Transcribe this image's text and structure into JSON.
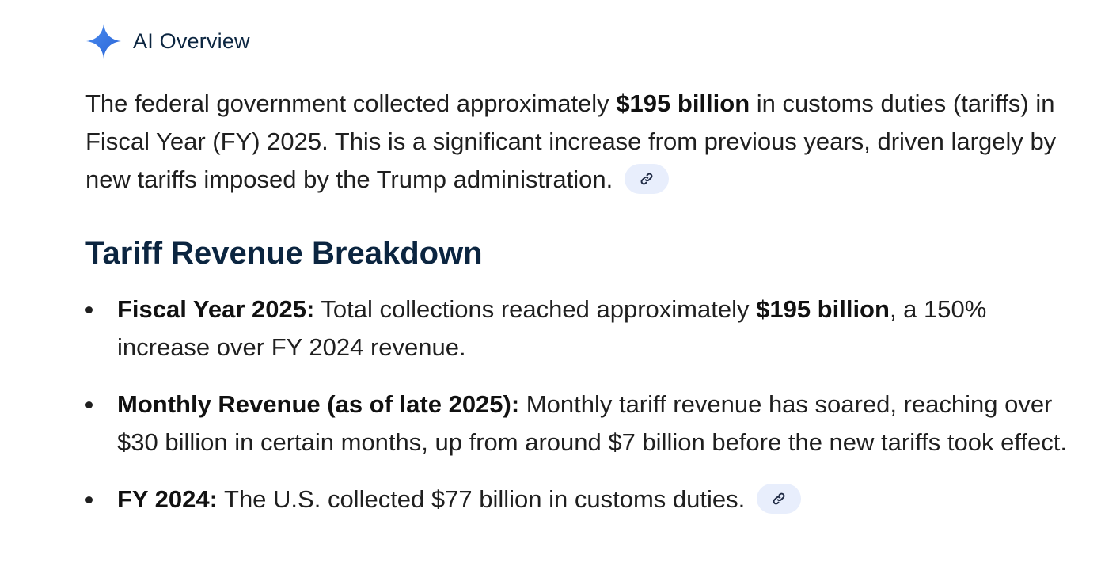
{
  "header": {
    "icon": "sparkle-icon",
    "title": "AI Overview",
    "icon_color": "#3b78e7"
  },
  "intro": {
    "part1": "The federal government collected approximately ",
    "bold1": "$195 billion",
    "part2": " in customs duties (tariffs) in Fiscal Year (FY) 2025. This is a significant increase from previous years, driven largely by new tariffs imposed by the Trump administration.",
    "link_icon": "link-icon"
  },
  "section": {
    "heading": "Tariff Revenue Breakdown"
  },
  "bullets": [
    {
      "label": "Fiscal Year 2025:",
      "text1": " Total collections reached approximately ",
      "bold": "$195 billion",
      "text2": ", a 150% increase over FY 2024 revenue."
    },
    {
      "label": "Monthly Revenue (as of late 2025):",
      "text1": " Monthly tariff revenue has soared, reaching over $30 billion in certain months, up from around $7 billion before the new tariffs took effect."
    },
    {
      "label": "FY 2024:",
      "text1": " The U.S. collected $77 billion in customs duties.",
      "link_icon": "link-icon"
    }
  ],
  "colors": {
    "heading": "#0b2540",
    "chip_bg": "#e8eefc",
    "accent": "#3b78e7"
  }
}
